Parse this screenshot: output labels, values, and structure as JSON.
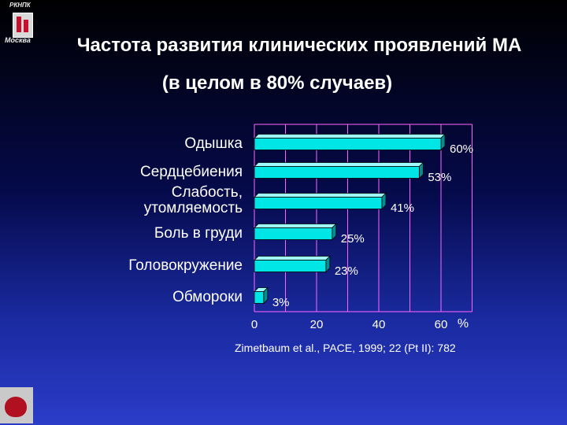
{
  "header": {
    "org": "РКНПК",
    "city": "Москва",
    "title": "Частота развития клинических проявлений МА",
    "subtitle": "(в целом в 80% случаев)"
  },
  "chart_data": {
    "type": "bar",
    "orientation": "horizontal",
    "categories": [
      "Одышка",
      "Сердцебиения",
      "Слабость, утомляемость",
      "Боль в груди",
      "Головокружение",
      "Обмороки"
    ],
    "category_lines": [
      [
        "Одышка"
      ],
      [
        "Сердцебиения"
      ],
      [
        "Слабость,",
        "утомляемость"
      ],
      [
        "Боль в груди"
      ],
      [
        "Головокружение"
      ],
      [
        "Обмороки"
      ]
    ],
    "values": [
      60,
      53,
      41,
      25,
      23,
      3
    ],
    "data_labels": [
      "60%",
      "53%",
      "41%",
      "25%",
      "23%",
      "3%"
    ],
    "xlim": [
      0,
      70
    ],
    "xticks": [
      "0",
      "20",
      "40",
      "60"
    ],
    "xunit": "%",
    "grid": true,
    "bar_color": "#00e5e5"
  },
  "citation": "Zimetbaum et al., PACE, 1999; 22 (Pt II): 782"
}
